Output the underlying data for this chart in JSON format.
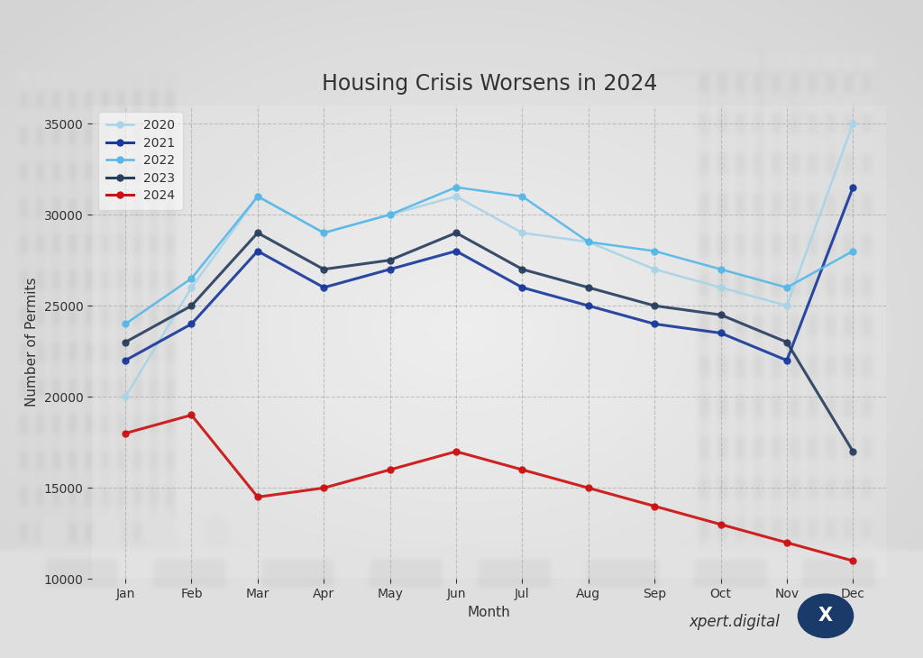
{
  "title": "Housing Crisis Worsens in 2024",
  "xlabel": "Month",
  "ylabel": "Number of Permits",
  "months": [
    "Jan",
    "Feb",
    "Mar",
    "Apr",
    "May",
    "Jun",
    "Jul",
    "Aug",
    "Sep",
    "Oct",
    "Nov",
    "Dec"
  ],
  "series": {
    "2020": {
      "values": [
        20000,
        26000,
        31000,
        29000,
        30000,
        31000,
        29000,
        28500,
        27000,
        26000,
        25000,
        35000
      ],
      "color": "#a8d4e8",
      "linewidth": 1.8,
      "marker": "o",
      "markersize": 5,
      "linestyle": "-"
    },
    "2021": {
      "values": [
        22000,
        24000,
        28000,
        26000,
        27000,
        28000,
        26000,
        25000,
        24000,
        23500,
        22000,
        31500
      ],
      "color": "#1a3a9c",
      "linewidth": 2.2,
      "marker": "o",
      "markersize": 5,
      "linestyle": "-"
    },
    "2022": {
      "values": [
        24000,
        26500,
        31000,
        29000,
        30000,
        31500,
        31000,
        28500,
        28000,
        27000,
        26000,
        28000
      ],
      "color": "#55b8e8",
      "linewidth": 1.8,
      "marker": "o",
      "markersize": 5,
      "linestyle": "-"
    },
    "2023": {
      "values": [
        23000,
        25000,
        29000,
        27000,
        27500,
        29000,
        27000,
        26000,
        25000,
        24500,
        23000,
        17000
      ],
      "color": "#2a3f5f",
      "linewidth": 2.2,
      "marker": "o",
      "markersize": 5,
      "linestyle": "-"
    },
    "2024": {
      "values": [
        18000,
        19000,
        14500,
        15000,
        16000,
        17000,
        16000,
        15000,
        14000,
        13000,
        12000,
        11000
      ],
      "color": "#cc1111",
      "linewidth": 2.2,
      "marker": "o",
      "markersize": 5,
      "linestyle": "-"
    }
  },
  "ylim": [
    10000,
    36000
  ],
  "yticks": [
    10000,
    15000,
    20000,
    25000,
    30000,
    35000
  ],
  "legend_order": [
    "2020",
    "2021",
    "2022",
    "2023",
    "2024"
  ],
  "title_fontsize": 17,
  "axis_label_fontsize": 11,
  "tick_fontsize": 10,
  "legend_fontsize": 10,
  "grid_color": "#999999",
  "grid_alpha": 0.5,
  "watermark_text": "xpert.digital",
  "watermark_icon_color": "#1a3a6a",
  "fig_width": 10.24,
  "fig_height": 7.3,
  "dpi": 100
}
